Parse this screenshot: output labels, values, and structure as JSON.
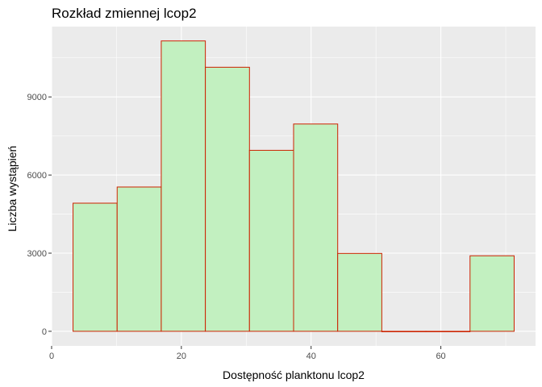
{
  "chart_data": {
    "type": "bar",
    "title": "Rozkład zmiennej lcop2",
    "xlabel": "Dostępność planktonu lcop2",
    "ylabel": "Liczba wystąpień",
    "xlim": [
      0,
      74.6
    ],
    "ylim": [
      -560,
      11700
    ],
    "x_ticks": [
      0,
      20,
      40,
      60
    ],
    "y_ticks": [
      0,
      3000,
      6000,
      9000
    ],
    "bins": [
      {
        "x0": 3.3,
        "x1": 10.1,
        "count": 4920
      },
      {
        "x0": 10.1,
        "x1": 16.9,
        "count": 5540
      },
      {
        "x0": 16.9,
        "x1": 23.7,
        "count": 11150
      },
      {
        "x0": 23.7,
        "x1": 30.5,
        "count": 10140
      },
      {
        "x0": 30.5,
        "x1": 37.3,
        "count": 6950
      },
      {
        "x0": 37.3,
        "x1": 44.1,
        "count": 7960
      },
      {
        "x0": 44.1,
        "x1": 50.9,
        "count": 2990
      },
      {
        "x0": 50.9,
        "x1": 57.7,
        "count": 0
      },
      {
        "x0": 57.7,
        "x1": 64.5,
        "count": 0
      },
      {
        "x0": 64.5,
        "x1": 71.3,
        "count": 2900
      }
    ],
    "grid": true,
    "colors": {
      "panel": "#EBEBEB",
      "grid": "#FFFFFF",
      "bar_fill": "#C2F0C0",
      "bar_stroke": "#CC2200"
    }
  }
}
